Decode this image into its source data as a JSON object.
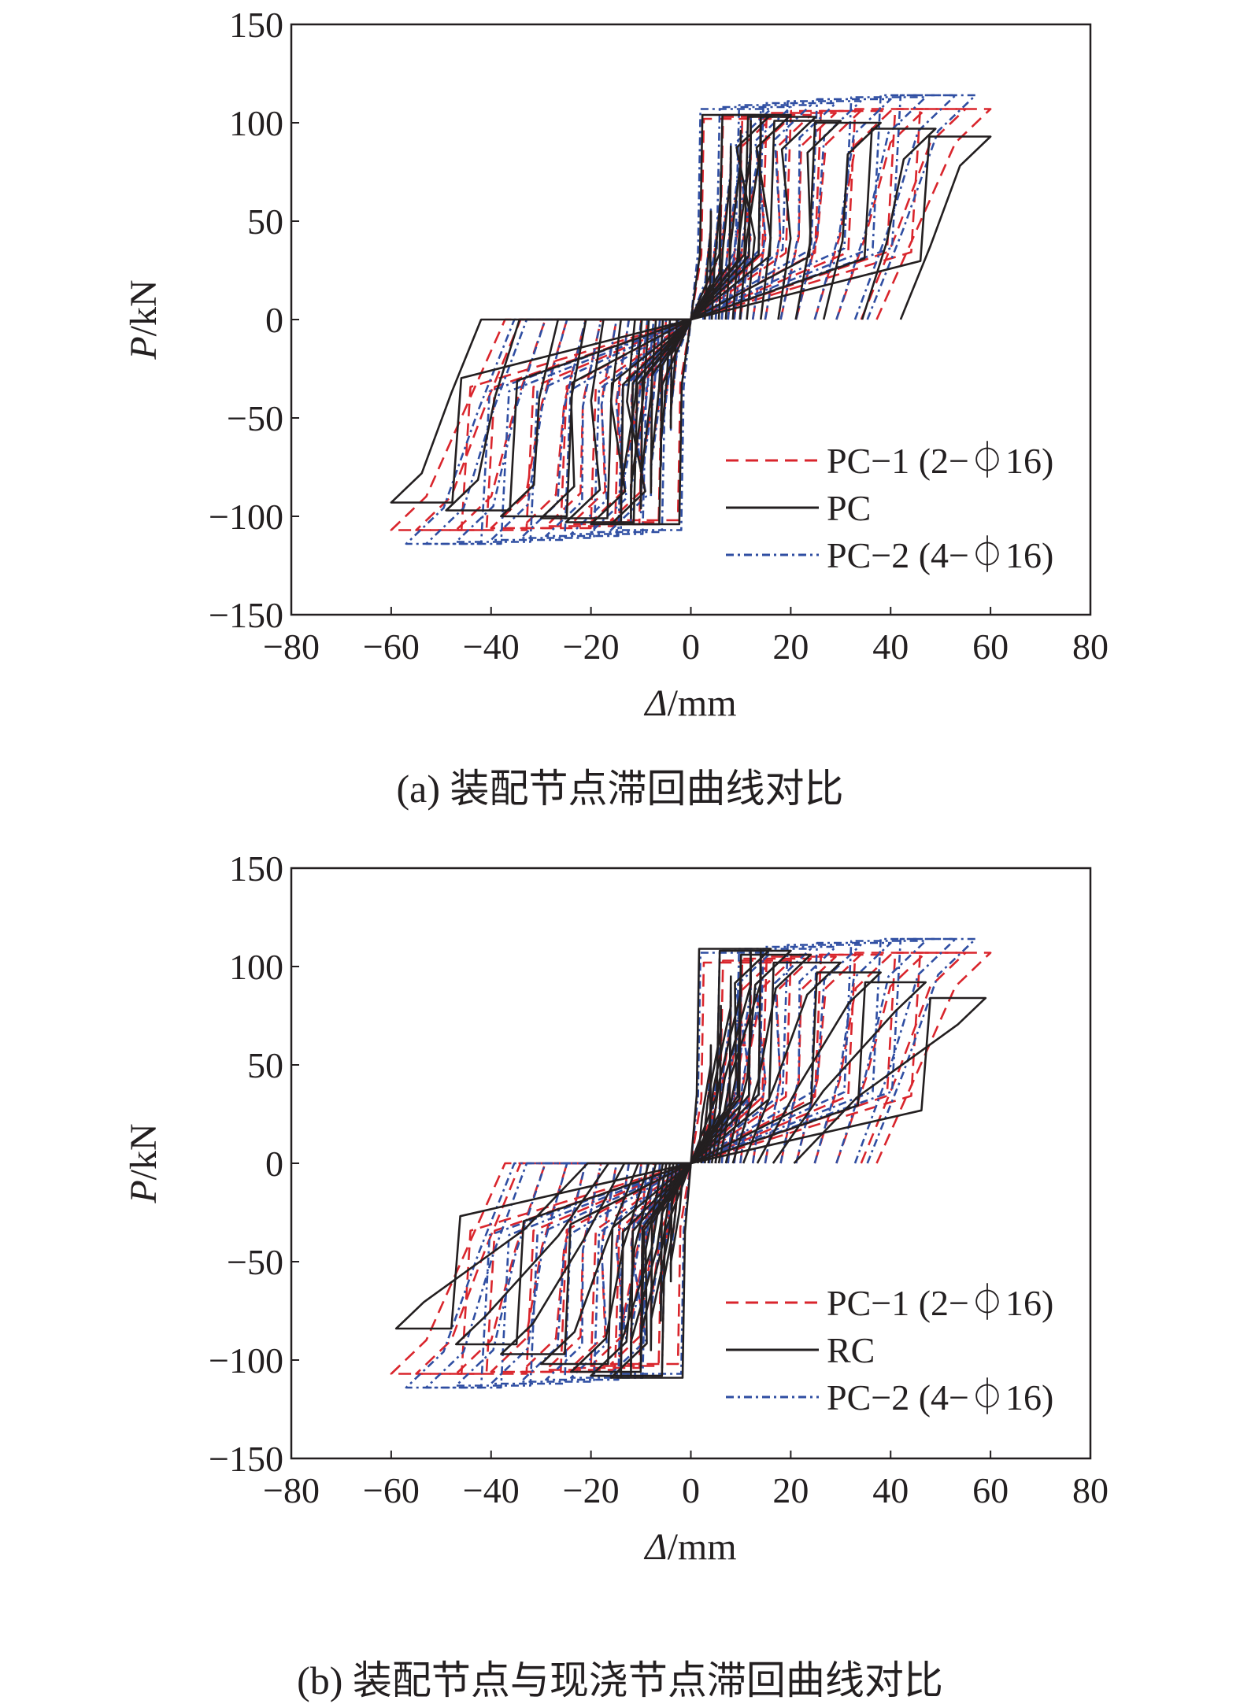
{
  "chart_data": [
    {
      "type": "line",
      "caption": "(a) 装配节点滞回曲线对比",
      "xlabel_symbol": "Δ",
      "xlabel_unit": "/mm",
      "ylabel_symbol": "P",
      "ylabel_unit": "/kN",
      "xlim": [
        -80,
        80
      ],
      "ylim": [
        -150,
        150
      ],
      "xticks": [
        "−80",
        "−60",
        "−40",
        "−20",
        "0",
        "20",
        "40",
        "60",
        "80"
      ],
      "yticks": [
        "150",
        "100",
        "50",
        "0",
        "−50",
        "−100",
        "−150"
      ],
      "grid": false,
      "legend_position": "lower-right",
      "series": [
        {
          "name": "PC−1 (2−⏀16)",
          "color": "#d9252c",
          "style": "dashed",
          "amplitudes": [
            4,
            6,
            8,
            10,
            12,
            14,
            16,
            20,
            24,
            29,
            34,
            40,
            47,
            55,
            60
          ],
          "peak_loads": [
            55,
            72,
            85,
            93,
            97,
            100,
            102,
            103,
            104,
            105,
            106,
            106,
            107,
            107,
            107
          ],
          "residual_fraction": 0.62
        },
        {
          "name": "PC",
          "color": "#231f20",
          "style": "solid",
          "amplitudes": [
            4,
            6,
            8,
            10,
            12,
            14,
            16,
            20,
            25,
            30,
            38,
            49,
            60
          ],
          "peak_loads": [
            55,
            74,
            88,
            96,
            101,
            103,
            104,
            104,
            103,
            101,
            100,
            97,
            93
          ],
          "residual_fraction": 0.7
        },
        {
          "name": "PC−2 (4−⏀16)",
          "color": "#2f4ea2",
          "style": "dashdot",
          "amplitudes": [
            4,
            6,
            8,
            10,
            12,
            14,
            16,
            20,
            24,
            29,
            34,
            40,
            47,
            53,
            57
          ],
          "peak_loads": [
            56,
            75,
            90,
            98,
            103,
            106,
            107,
            108,
            109,
            110,
            111,
            112,
            113,
            114,
            114
          ],
          "residual_fraction": 0.62
        }
      ]
    },
    {
      "type": "line",
      "caption": "(b) 装配节点与现浇节点滞回曲线对比",
      "xlabel_symbol": "Δ",
      "xlabel_unit": "/mm",
      "ylabel_symbol": "P",
      "ylabel_unit": "/kN",
      "xlim": [
        -80,
        80
      ],
      "ylim": [
        -150,
        150
      ],
      "xticks": [
        "−80",
        "−60",
        "−40",
        "−20",
        "0",
        "20",
        "40",
        "60",
        "80"
      ],
      "yticks": [
        "150",
        "100",
        "50",
        "0",
        "−50",
        "−100",
        "−150"
      ],
      "grid": false,
      "legend_position": "lower-right",
      "series": [
        {
          "name": "PC−1 (2−⏀16)",
          "color": "#d9252c",
          "style": "dashed",
          "amplitudes": [
            4,
            6,
            8,
            10,
            12,
            14,
            16,
            20,
            24,
            29,
            34,
            40,
            47,
            55,
            60
          ],
          "peak_loads": [
            55,
            72,
            85,
            93,
            97,
            100,
            102,
            103,
            104,
            105,
            106,
            106,
            107,
            107,
            107
          ],
          "residual_fraction": 0.62
        },
        {
          "name": "RC",
          "color": "#231f20",
          "style": "solid",
          "amplitudes": [
            4,
            6,
            8,
            10,
            12,
            14,
            16,
            20,
            24,
            30,
            38,
            47,
            59
          ],
          "peak_loads": [
            60,
            80,
            95,
            103,
            108,
            109,
            109,
            108,
            106,
            102,
            97,
            92,
            84
          ],
          "residual_fraction": 0.35
        },
        {
          "name": "PC−2 (4−⏀16)",
          "color": "#2f4ea2",
          "style": "dashdot",
          "amplitudes": [
            4,
            6,
            8,
            10,
            12,
            14,
            16,
            20,
            24,
            29,
            34,
            40,
            47,
            53,
            57
          ],
          "peak_loads": [
            56,
            75,
            90,
            98,
            103,
            106,
            107,
            108,
            109,
            110,
            111,
            112,
            113,
            114,
            114
          ],
          "residual_fraction": 0.62
        }
      ]
    }
  ]
}
